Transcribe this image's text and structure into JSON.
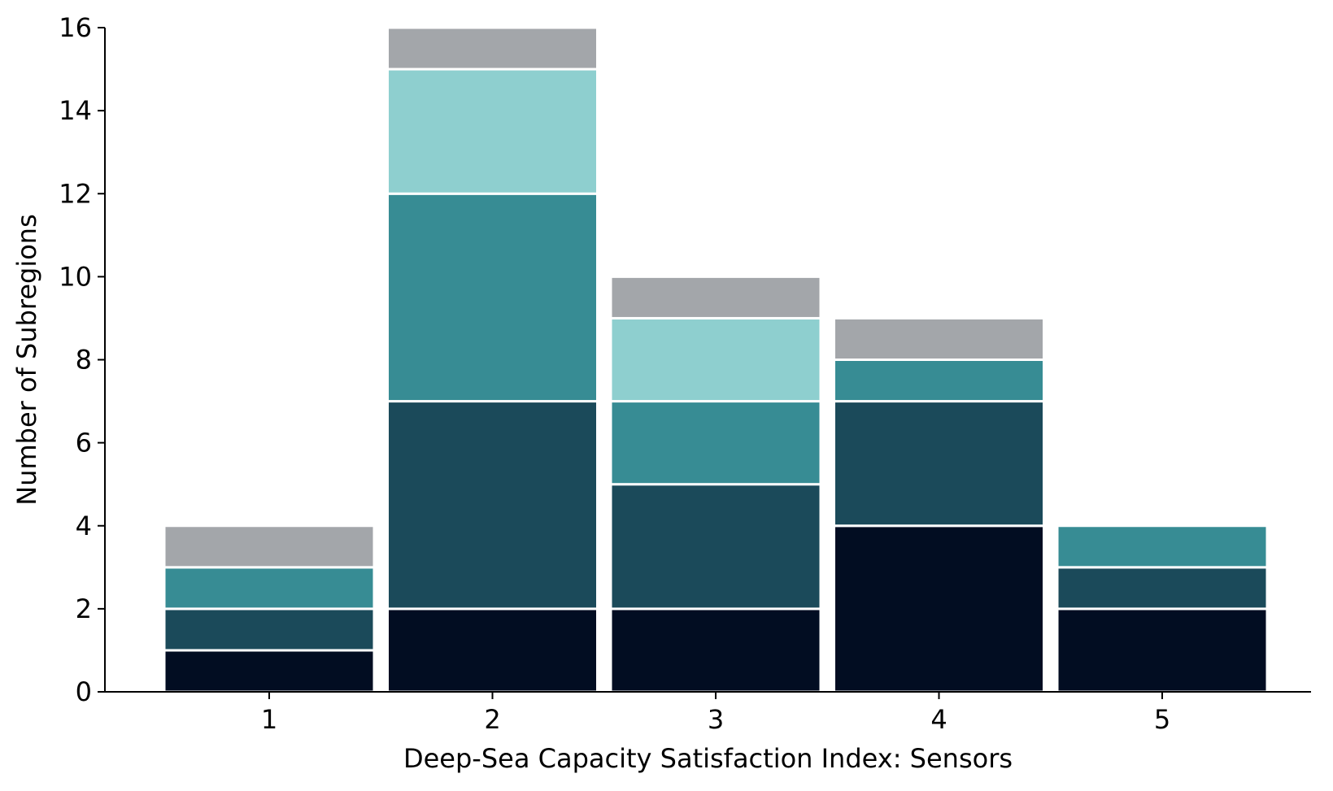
{
  "chart_data": {
    "type": "bar",
    "stacked": true,
    "title": "",
    "xlabel": "Deep-Sea Capacity Satisfaction Index: Sensors",
    "ylabel": "Number of Subregions",
    "categories": [
      "1",
      "2",
      "3",
      "4",
      "5"
    ],
    "ylim": [
      0,
      16
    ],
    "yticks": [
      "0",
      "2",
      "4",
      "6",
      "8",
      "10",
      "12",
      "14",
      "16"
    ],
    "grid": false,
    "legend": "none",
    "series": [
      {
        "color": "#020d22",
        "values": [
          1,
          2,
          2,
          4,
          2
        ]
      },
      {
        "color": "#1b4a5a",
        "values": [
          1,
          5,
          3,
          3,
          1
        ]
      },
      {
        "color": "#378c94",
        "values": [
          1,
          5,
          2,
          1,
          1
        ]
      },
      {
        "color": "#8ecfcf",
        "values": [
          0,
          3,
          2,
          0,
          0
        ]
      },
      {
        "color": "#a3a6aa",
        "values": [
          1,
          1,
          1,
          1,
          0
        ]
      }
    ]
  }
}
